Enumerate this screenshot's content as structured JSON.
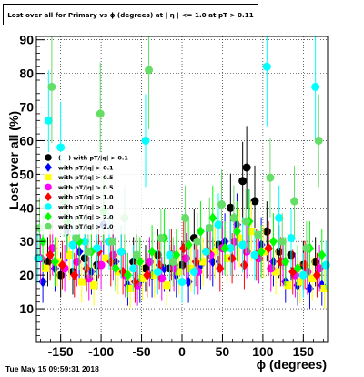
{
  "chart_data": {
    "type": "scatter",
    "title": "Lost over all for Primary vs ϕ (degrees) at | η | <= 1.0 at pT > 0.11",
    "xlabel": "ϕ (degrees)",
    "ylabel": "Lost over all (%)",
    "xlim": [
      -180,
      180
    ],
    "ylim": [
      0,
      91
    ],
    "x_ticks": [
      -150,
      -100,
      -50,
      0,
      50,
      100,
      150
    ],
    "y_ticks": [
      10,
      20,
      30,
      40,
      50,
      60,
      70,
      80,
      90
    ],
    "grid": true,
    "legend_position": "left",
    "series": [
      {
        "name": "(---) with pT/|q| > 0.1",
        "color": "#000000",
        "marker": "circle",
        "x": [
          -166,
          -150,
          -135,
          -120,
          -105,
          -90,
          -75,
          -60,
          -45,
          -30,
          -15,
          0,
          15,
          30,
          45,
          60,
          75,
          80,
          90,
          105,
          120,
          135,
          150,
          165
        ],
        "y": [
          24,
          20,
          21,
          25,
          23,
          30,
          27,
          24,
          22,
          26,
          22,
          23,
          31,
          27,
          29,
          40,
          48,
          52,
          42,
          33,
          27,
          26,
          23,
          24
        ]
      },
      {
        "name": "with pT/|q| > 0.1",
        "color": "#0000ff",
        "marker": "diamond",
        "x": [
          -172,
          -157,
          -142,
          -127,
          -112,
          -97,
          -82,
          -67,
          -52,
          -37,
          -22,
          -7,
          8,
          23,
          38,
          53,
          68,
          83,
          98,
          113,
          128,
          143,
          158,
          173
        ],
        "y": [
          18,
          22,
          33,
          27,
          21,
          35,
          24,
          17,
          18,
          20,
          22,
          20,
          18,
          23,
          24,
          30,
          35,
          36,
          29,
          24,
          18,
          17,
          16,
          17
        ]
      },
      {
        "name": "with pT/|q| > 0.5",
        "color": "#ffff00",
        "marker": "square",
        "x": [
          -169,
          -154,
          -139,
          -124,
          -109,
          -94,
          -79,
          -64,
          -49,
          -34,
          -19,
          -4,
          11,
          26,
          41,
          56,
          71,
          86,
          101,
          116,
          131,
          146,
          161,
          176
        ],
        "y": [
          22,
          24,
          26,
          18,
          17,
          25,
          21,
          16,
          19,
          20,
          17,
          21,
          22,
          24,
          27,
          25,
          31,
          33,
          27,
          21,
          17,
          18,
          19,
          16
        ]
      },
      {
        "name": "with pT/|q| > 0.5",
        "color": "#ff00ff",
        "marker": "circle",
        "x": [
          -175,
          -160,
          -145,
          -130,
          -115,
          -100,
          -85,
          -70,
          -55,
          -40,
          -25,
          -10,
          5,
          20,
          35,
          50,
          65,
          80,
          95,
          110,
          125,
          140,
          155,
          170
        ],
        "y": [
          25,
          28,
          22,
          24,
          19,
          23,
          26,
          20,
          17,
          24,
          19,
          22,
          25,
          21,
          26,
          28,
          30,
          27,
          25,
          22,
          24,
          20,
          21,
          22
        ]
      },
      {
        "name": "with pT/|q| > 1.0",
        "color": "#ff0000",
        "marker": "diamond",
        "x": [
          -163,
          -148,
          -133,
          -118,
          -103,
          -88,
          -73,
          -58,
          -43,
          -28,
          -13,
          2,
          17,
          32,
          47,
          62,
          77,
          92,
          107,
          122,
          137,
          152,
          167
        ],
        "y": [
          26,
          23,
          20,
          22,
          27,
          24,
          21,
          18,
          20,
          23,
          26,
          28,
          24,
          27,
          22,
          25,
          23,
          26,
          28,
          24,
          21,
          23,
          20
        ]
      },
      {
        "name": "with pT/|q| > 1.0",
        "color": "#00ffff",
        "marker": "circle",
        "x": [
          -178,
          -165,
          -150,
          -135,
          -120,
          -105,
          -90,
          -75,
          -60,
          -45,
          -30,
          -15,
          0,
          15,
          30,
          45,
          60,
          75,
          90,
          105,
          120,
          135,
          150,
          165,
          178
        ],
        "y": [
          25,
          66,
          58,
          29,
          30,
          28,
          30,
          27,
          22,
          60,
          21,
          26,
          18,
          21,
          27,
          35,
          28,
          29,
          26,
          82,
          37,
          31,
          20,
          76,
          23
        ]
      },
      {
        "name": "with pT/|q| > 2.0",
        "color": "#00ff00",
        "marker": "diamond",
        "x": [
          -172,
          -157,
          -142,
          -127,
          -112,
          -97,
          -82,
          -67,
          -52,
          -37,
          -22,
          -7,
          8,
          23,
          38,
          53,
          68,
          83,
          98,
          113,
          128,
          143,
          158,
          173
        ],
        "y": [
          30,
          24,
          36,
          30,
          27,
          39,
          22,
          20,
          24,
          27,
          31,
          26,
          29,
          33,
          37,
          28,
          33,
          36,
          27,
          30,
          24,
          22,
          28,
          26
        ]
      },
      {
        "name": "with pT/|q| > 2.0",
        "color": "#66dd66",
        "marker": "circle",
        "x": [
          -176,
          -161,
          -146,
          -131,
          -116,
          -101,
          -86,
          -71,
          -56,
          -41,
          -26,
          -11,
          4,
          19,
          34,
          49,
          64,
          79,
          94,
          109,
          124,
          139,
          154,
          169
        ],
        "y": [
          34,
          76,
          42,
          31,
          27,
          68,
          30,
          37,
          26,
          81,
          31,
          24,
          37,
          30,
          34,
          41,
          37,
          36,
          32,
          49,
          30,
          42,
          28,
          60
        ]
      }
    ]
  },
  "timestamp": "Tue May 15 09:59:31 2018"
}
